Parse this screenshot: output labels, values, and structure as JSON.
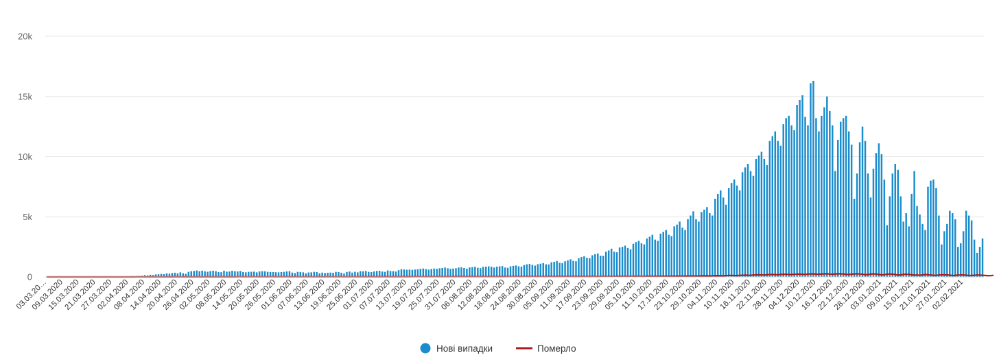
{
  "chart_data": {
    "type": "bar",
    "title": "",
    "xlabel": "",
    "ylabel": "",
    "ylim": [
      0,
      20000
    ],
    "y_ticks": [
      0,
      5000,
      10000,
      15000,
      20000
    ],
    "y_tick_labels": [
      "0",
      "5k",
      "10k",
      "15k",
      "20k"
    ],
    "x_start": "03.03.2020",
    "x_end": "03.02.2021",
    "x_tick_labels": [
      "03.03.20…",
      "09.03.2020",
      "15.03.2020",
      "21.03.2020",
      "27.03.2020",
      "02.04.2020",
      "08.04.2020",
      "14.04.2020",
      "20.04.2020",
      "26.04.2020",
      "02.05.2020",
      "08.05.2020",
      "14.05.2020",
      "20.05.2020",
      "26.05.2020",
      "01.06.2020",
      "07.06.2020",
      "13.06.2020",
      "19.06.2020",
      "25.06.2020",
      "01.07.2020",
      "07.07.2020",
      "13.07.2020",
      "19.07.2020",
      "25.07.2020",
      "31.07.2020",
      "06.08.2020",
      "12.08.2020",
      "18.08.2020",
      "24.08.2020",
      "30.08.2020",
      "05.09.2020",
      "11.09.2020",
      "17.09.2020",
      "23.09.2020",
      "29.09.2020",
      "05.10.2020",
      "11.10.2020",
      "17.10.2020",
      "23.10.2020",
      "29.10.2020",
      "04.11.2020",
      "10.11.2020",
      "16.11.2020",
      "22.11.2020",
      "28.11.2020",
      "04.12.2020",
      "10.12.2020",
      "16.12.2020",
      "22.12.2020",
      "28.12.2020",
      "03.01.2021",
      "09.01.2021",
      "15.01.2021",
      "21.01.2021",
      "27.01.2021",
      "02.02.2021"
    ],
    "grid": true,
    "legend_position": "bottom",
    "series": [
      {
        "name": "Нові випадки",
        "type": "bar",
        "color": "#1a8ccc",
        "values": [
          1,
          0,
          0,
          0,
          0,
          0,
          0,
          0,
          1,
          2,
          0,
          0,
          0,
          3,
          6,
          4,
          5,
          10,
          16,
          10,
          13,
          25,
          18,
          22,
          35,
          40,
          43,
          50,
          55,
          63,
          61,
          70,
          76,
          82,
          90,
          100,
          150,
          130,
          180,
          160,
          210,
          220,
          250,
          230,
          300,
          280,
          320,
          350,
          300,
          380,
          310,
          260,
          420,
          480,
          500,
          540,
          480,
          520,
          470,
          430,
          490,
          520,
          480,
          400,
          390,
          520,
          440,
          450,
          510,
          480,
          460,
          500,
          400,
          380,
          420,
          430,
          440,
          380,
          460,
          480,
          470,
          420,
          410,
          400,
          390,
          380,
          400,
          420,
          460,
          480,
          360,
          320,
          420,
          410,
          380,
          300,
          370,
          380,
          420,
          400,
          310,
          360,
          330,
          350,
          360,
          350,
          420,
          400,
          350,
          280,
          410,
          450,
          360,
          430,
          380,
          480,
          470,
          490,
          420,
          400,
          460,
          500,
          510,
          450,
          420,
          540,
          500,
          480,
          450,
          560,
          640,
          620,
          600,
          610,
          590,
          620,
          640,
          680,
          700,
          650,
          610,
          660,
          700,
          680,
          720,
          740,
          780,
          720,
          680,
          700,
          720,
          780,
          800,
          740,
          690,
          790,
          810,
          840,
          760,
          730,
          840,
          850,
          880,
          850,
          780,
          860,
          880,
          900,
          780,
          760,
          880,
          920,
          950,
          880,
          860,
          990,
          1050,
          1080,
          1000,
          940,
          1060,
          1100,
          1150,
          1050,
          1040,
          1220,
          1260,
          1320,
          1180,
          1150,
          1300,
          1380,
          1460,
          1330,
          1300,
          1560,
          1650,
          1720,
          1600,
          1560,
          1800,
          1900,
          1950,
          1770,
          1760,
          2100,
          2200,
          2350,
          2100,
          2050,
          2450,
          2500,
          2600,
          2400,
          2300,
          2750,
          2900,
          3000,
          2800,
          2700,
          3200,
          3350,
          3500,
          3100,
          3000,
          3600,
          3750,
          3900,
          3500,
          3400,
          4200,
          4350,
          4600,
          4100,
          3900,
          4800,
          5100,
          5450,
          4800,
          4600,
          5400,
          5600,
          5800,
          5300,
          5100,
          6500,
          6900,
          7200,
          6600,
          6000,
          7400,
          7800,
          8100,
          7600,
          7200,
          8700,
          9100,
          9400,
          8800,
          8400,
          9800,
          10100,
          10400,
          9800,
          9300,
          11300,
          11700,
          12100,
          11300,
          10900,
          12700,
          13200,
          13400,
          12600,
          12200,
          14300,
          14700,
          15100,
          13300,
          12600,
          16100,
          16300,
          13200,
          12100,
          13400,
          14100,
          15000,
          13800,
          12600,
          8800,
          11400,
          12900,
          13200,
          13400,
          12100,
          11000,
          6500,
          8600,
          11200,
          12500,
          11300,
          8600,
          6600,
          9000,
          10300,
          11100,
          10200,
          8100,
          4300,
          6700,
          8600,
          9400,
          8900,
          6700,
          4600,
          5300,
          4200,
          6900,
          8800,
          5900,
          5200,
          4400,
          3900,
          7500,
          8000,
          8100,
          7400,
          5100,
          2700,
          3800,
          4400,
          5500,
          5300,
          4800,
          2500,
          2800,
          3800,
          5500,
          5100,
          4700,
          3100,
          2000,
          2500,
          3200
        ]
      },
      {
        "name": "Померло",
        "type": "line",
        "color": "#a81d1d",
        "values": [
          0,
          0,
          0,
          0,
          0,
          0,
          0,
          0,
          0,
          0,
          0,
          0,
          0,
          0,
          0,
          0,
          0,
          0,
          0,
          0,
          0,
          0,
          0,
          0,
          0,
          0,
          0,
          0,
          1,
          1,
          1,
          1,
          1,
          2,
          2,
          2,
          3,
          3,
          3,
          3,
          4,
          4,
          4,
          4,
          5,
          5,
          5,
          5,
          5,
          6,
          6,
          6,
          6,
          6,
          7,
          7,
          7,
          7,
          7,
          8,
          8,
          8,
          8,
          8,
          9,
          9,
          9,
          9,
          9,
          9,
          10,
          10,
          10,
          10,
          10,
          10,
          10,
          10,
          10,
          10,
          10,
          10,
          10,
          10,
          10,
          10,
          10,
          10,
          10,
          10,
          10,
          10,
          10,
          10,
          10,
          10,
          10,
          10,
          10,
          10,
          10,
          10,
          11,
          11,
          11,
          11,
          11,
          11,
          12,
          12,
          12,
          12,
          12,
          12,
          13,
          13,
          13,
          13,
          13,
          14,
          14,
          14,
          14,
          14,
          15,
          15,
          15,
          15,
          15,
          16,
          16,
          16,
          16,
          16,
          17,
          17,
          17,
          17,
          17,
          18,
          18,
          18,
          18,
          18,
          19,
          19,
          19,
          19,
          19,
          20,
          20,
          20,
          20,
          20,
          21,
          21,
          21,
          21,
          21,
          22,
          22,
          22,
          22,
          22,
          23,
          23,
          23,
          23,
          23,
          24,
          24,
          24,
          24,
          24,
          25,
          25,
          25,
          25,
          25,
          26,
          26,
          26,
          26,
          26,
          27,
          27,
          27,
          27,
          27,
          28,
          28,
          28,
          28,
          28,
          29,
          29,
          29,
          29,
          29,
          30,
          30,
          30,
          30,
          30,
          32,
          33,
          34,
          33,
          32,
          35,
          36,
          38,
          36,
          35,
          40,
          42,
          44,
          42,
          40,
          46,
          48,
          50,
          48,
          46,
          52,
          55,
          58,
          55,
          52,
          60,
          64,
          67,
          63,
          60,
          70,
          75,
          80,
          74,
          70,
          82,
          88,
          92,
          86,
          80,
          95,
          100,
          105,
          98,
          92,
          110,
          120,
          125,
          115,
          108,
          130,
          140,
          150,
          140,
          130,
          160,
          170,
          180,
          168,
          155,
          185,
          195,
          205,
          190,
          178,
          210,
          218,
          225,
          208,
          195,
          220,
          230,
          240,
          222,
          210,
          240,
          250,
          255,
          235,
          220,
          245,
          255,
          262,
          240,
          225,
          250,
          258,
          262,
          240,
          220,
          200,
          230,
          250,
          260,
          245,
          225,
          180,
          200,
          240,
          255,
          240,
          210,
          170,
          190,
          230,
          245,
          230,
          200,
          150,
          170,
          210,
          225,
          210,
          180,
          150,
          160,
          140,
          170,
          200,
          180,
          160,
          140,
          130,
          160,
          175,
          180,
          165,
          150,
          110,
          130,
          150,
          165,
          160,
          150,
          110,
          120,
          140,
          160,
          150,
          140,
          120,
          100,
          110,
          130
        ]
      }
    ]
  }
}
